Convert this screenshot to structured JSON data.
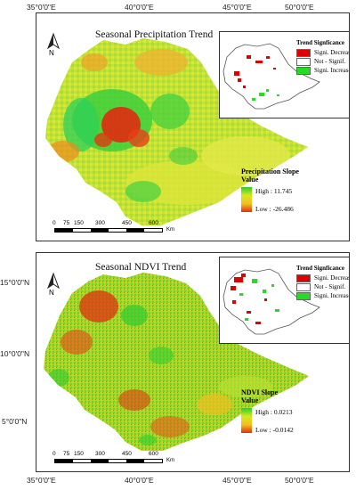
{
  "coords": {
    "top_lon": [
      "35°0'0\"E",
      "40°0'0\"E",
      "45°0'0\"E",
      "50°0'0\"E"
    ],
    "bottom_lon": [
      "35°0'0\"E",
      "40°0'0\"E",
      "45°0'0\"E",
      "50°0'0\"E"
    ],
    "lat": [
      "15°0'0\"N",
      "10°0'0\"N",
      "5°0'0\"N"
    ]
  },
  "top_panel": {
    "title": "Seasonal Precipitation Trend",
    "north": "N",
    "inset_legend": {
      "title": "Trend Signficance",
      "items": [
        {
          "label": "Signi. Decrease",
          "color": "#e00000"
        },
        {
          "label": "Not - Signif.",
          "color": "#ffffff"
        },
        {
          "label": "Signi. Increase",
          "color": "#22dd22"
        }
      ]
    },
    "slope_title_1": "Precipitation Slope",
    "slope_title_2": "Value",
    "high": "High : 11.745",
    "low": "Low : -26.486",
    "scale": [
      "0",
      "75",
      "150",
      "300",
      "450",
      "600"
    ],
    "scale_unit": "Km"
  },
  "bottom_panel": {
    "title": "Seasonal NDVI Trend",
    "north": "N",
    "inset_legend": {
      "title": "Trend Signficance",
      "items": [
        {
          "label": "Signi. Decrease",
          "color": "#e00000"
        },
        {
          "label": "Not - Signif.",
          "color": "#ffffff"
        },
        {
          "label": "Signi. Increase",
          "color": "#22dd22"
        }
      ]
    },
    "slope_title_1": "NDVI Slope",
    "slope_title_2": "Value",
    "high": "High : 0.0213",
    "low": "Low : -0.0142",
    "scale": [
      "0",
      "75",
      "150",
      "300",
      "450",
      "600"
    ],
    "scale_unit": "Km"
  }
}
